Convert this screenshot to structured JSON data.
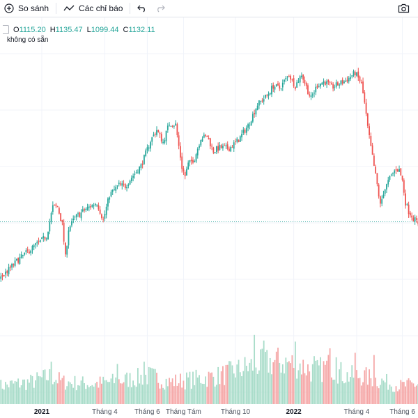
{
  "toolbar": {
    "compare_label": "So sánh",
    "indicators_label": "Các chỉ báo",
    "icons": [
      "plus-circle-icon",
      "line-chart-icon",
      "undo-icon",
      "redo-icon",
      "camera-icon"
    ]
  },
  "legend": {
    "open_label": "O",
    "open_value": "1115.20",
    "high_label": "H",
    "high_value": "1135.47",
    "low_label": "L",
    "low_value": "1099.44",
    "close_label": "C",
    "close_value": "1132.11",
    "status": "không có sẵn"
  },
  "colors": {
    "up": "#26a69a",
    "down": "#ef5350",
    "up_volume": "#a8dcc9",
    "down_volume": "#f5a7a7",
    "last_price_line": "#26a69a",
    "grid": "#f0f3fa"
  },
  "chart_data": {
    "type": "candlestick",
    "x_tick_labels": [
      "2021",
      "Tháng 4",
      "Tháng 6",
      "Tháng Tám",
      "Tháng 10",
      "2022",
      "Tháng 4",
      "Tháng 6"
    ],
    "bold_tick_labels": [
      "2021",
      "2022"
    ],
    "price_range": [
      780,
      1580
    ],
    "last_close": 1132.11,
    "price_anchors": [
      [
        0,
        1000
      ],
      [
        12,
        1045
      ],
      [
        22,
        1075
      ],
      [
        30,
        1098
      ],
      [
        34,
        1165
      ],
      [
        37,
        1165
      ],
      [
        40,
        1125
      ],
      [
        42,
        1050
      ],
      [
        44,
        1115
      ],
      [
        48,
        1140
      ],
      [
        55,
        1160
      ],
      [
        62,
        1175
      ],
      [
        66,
        1135
      ],
      [
        70,
        1192
      ],
      [
        76,
        1215
      ],
      [
        80,
        1212
      ],
      [
        84,
        1232
      ],
      [
        90,
        1258
      ],
      [
        96,
        1315
      ],
      [
        100,
        1340
      ],
      [
        104,
        1312
      ],
      [
        108,
        1355
      ],
      [
        112,
        1352
      ],
      [
        114,
        1303
      ],
      [
        116,
        1255
      ],
      [
        118,
        1235
      ],
      [
        120,
        1262
      ],
      [
        124,
        1275
      ],
      [
        128,
        1322
      ],
      [
        132,
        1325
      ],
      [
        136,
        1292
      ],
      [
        140,
        1300
      ],
      [
        146,
        1298
      ],
      [
        152,
        1318
      ],
      [
        158,
        1350
      ],
      [
        164,
        1398
      ],
      [
        170,
        1418
      ],
      [
        174,
        1440
      ],
      [
        178,
        1435
      ],
      [
        184,
        1465
      ],
      [
        188,
        1440
      ],
      [
        192,
        1467
      ],
      [
        196,
        1428
      ],
      [
        198,
        1412
      ],
      [
        202,
        1442
      ],
      [
        206,
        1450
      ],
      [
        212,
        1438
      ],
      [
        220,
        1452
      ],
      [
        226,
        1470
      ],
      [
        230,
        1445
      ],
      [
        232,
        1400
      ],
      [
        234,
        1345
      ],
      [
        236,
        1300
      ],
      [
        240,
        1215
      ],
      [
        242,
        1168
      ],
      [
        244,
        1198
      ],
      [
        248,
        1230
      ],
      [
        252,
        1252
      ],
      [
        254,
        1248
      ],
      [
        256,
        1225
      ],
      [
        258,
        1175
      ],
      [
        260,
        1155
      ],
      [
        263,
        1140
      ],
      [
        266,
        1128
      ]
    ],
    "volume_scale": [
      0,
      100
    ],
    "volume_anchors": [
      [
        0,
        18
      ],
      [
        20,
        22
      ],
      [
        33,
        28
      ],
      [
        40,
        22
      ],
      [
        60,
        20
      ],
      [
        80,
        24
      ],
      [
        96,
        28
      ],
      [
        108,
        22
      ],
      [
        120,
        24
      ],
      [
        140,
        28
      ],
      [
        160,
        38
      ],
      [
        175,
        42
      ],
      [
        190,
        40
      ],
      [
        200,
        32
      ],
      [
        210,
        38
      ],
      [
        220,
        28
      ],
      [
        230,
        28
      ],
      [
        240,
        24
      ],
      [
        255,
        18
      ],
      [
        266,
        20
      ]
    ],
    "volume_spikes": [
      [
        33,
        38
      ],
      [
        75,
        36
      ],
      [
        92,
        38
      ],
      [
        162,
        62
      ],
      [
        168,
        57
      ],
      [
        176,
        47
      ],
      [
        188,
        56
      ],
      [
        200,
        43
      ],
      [
        210,
        50
      ],
      [
        214,
        42
      ],
      [
        226,
        46
      ],
      [
        238,
        44
      ]
    ]
  }
}
